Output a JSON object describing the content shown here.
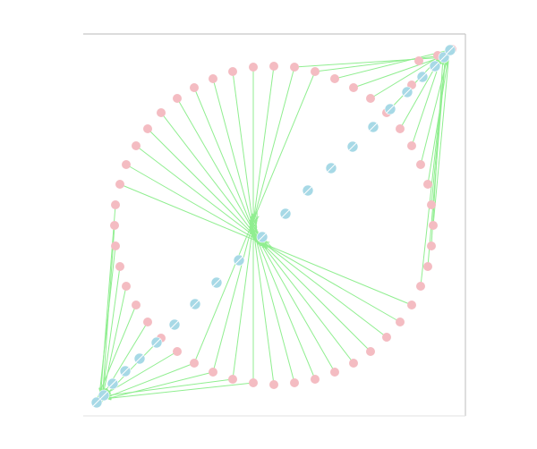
{
  "diagram": {
    "kind": "edge-bundled graph layout",
    "colors": {
      "outer_node": "#f4bcc2",
      "inner_node": "#a7d9e6",
      "edge": "#90ee90",
      "frame": "#c8c8c8",
      "background": "#ffffff"
    },
    "outer_node_count": 47,
    "inner_node_count": 22,
    "edge_count": 46,
    "edges_have_arrowheads": true
  }
}
